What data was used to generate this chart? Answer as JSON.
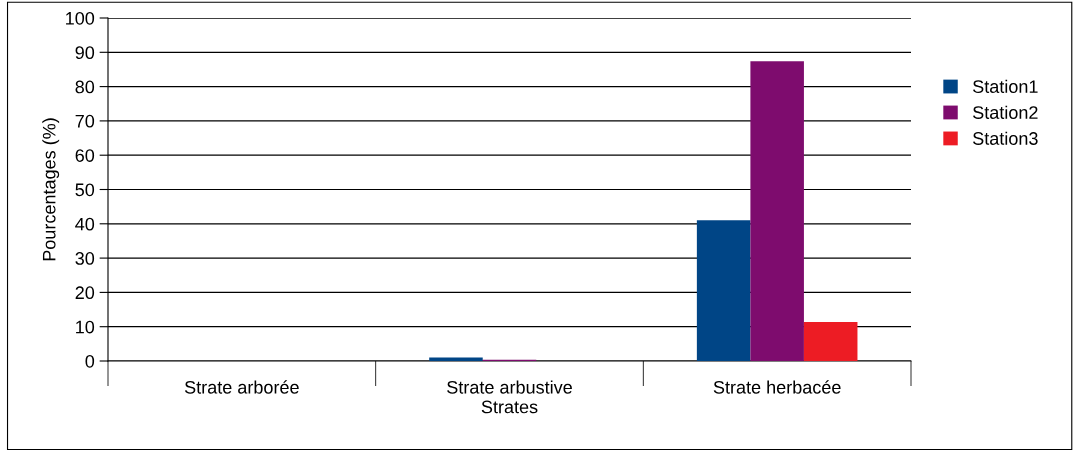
{
  "chart_data": {
    "type": "bar",
    "xlabel": "Strates",
    "ylabel": "Pourcentages (%)",
    "categories": [
      "Strate arborée",
      "Strate arbustive",
      "Strate herbacée"
    ],
    "series": [
      {
        "name": "Station1",
        "color": "#004586",
        "values": [
          0,
          1,
          41
        ]
      },
      {
        "name": "Station2",
        "color": "#7e0c6e",
        "values": [
          0,
          0.4,
          87.4
        ]
      },
      {
        "name": "Station3",
        "color": "#ed1c24",
        "values": [
          0,
          0,
          11.4
        ]
      }
    ],
    "ylim": [
      0,
      100
    ],
    "yticks": [
      0,
      10,
      20,
      30,
      40,
      50,
      60,
      70,
      80,
      90,
      100
    ],
    "grid": "y",
    "legend": "right"
  }
}
